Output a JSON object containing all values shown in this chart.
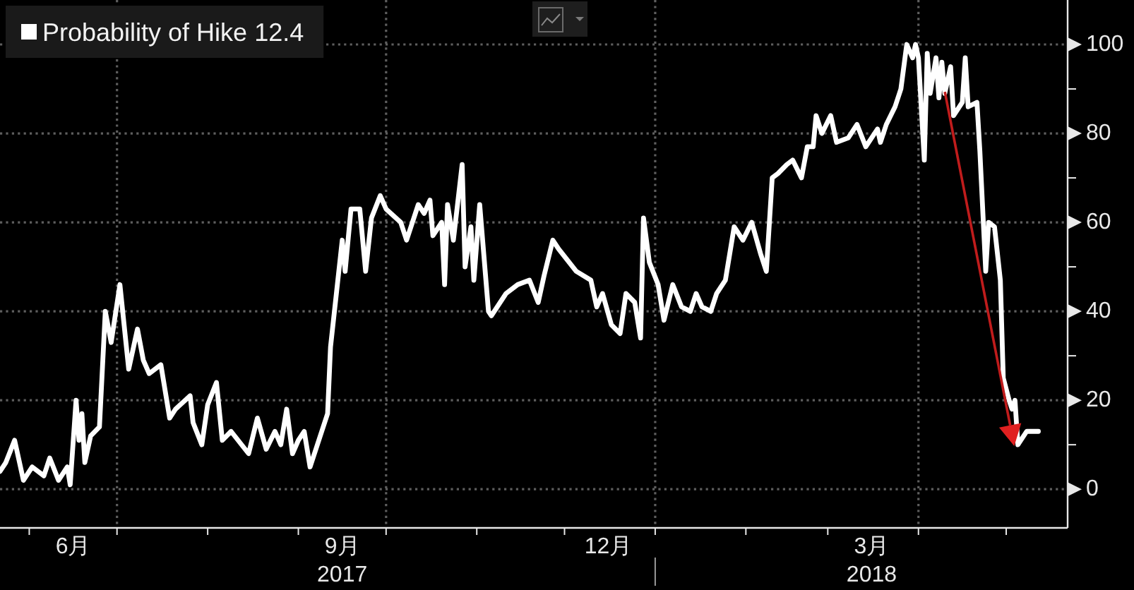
{
  "chart_data": {
    "type": "line",
    "x": [
      "2017-05-22",
      "2017-05-24",
      "2017-05-27",
      "2017-05-30",
      "2017-06-02",
      "2017-06-06",
      "2017-06-08",
      "2017-06-11",
      "2017-06-14",
      "2017-06-15",
      "2017-06-17",
      "2017-06-18",
      "2017-06-19",
      "2017-06-20",
      "2017-06-22",
      "2017-06-25",
      "2017-06-27",
      "2017-06-29",
      "2017-07-02",
      "2017-07-05",
      "2017-07-08",
      "2017-07-10",
      "2017-07-12",
      "2017-07-16",
      "2017-07-19",
      "2017-07-21",
      "2017-07-26",
      "2017-07-27",
      "2017-07-30",
      "2017-08-01",
      "2017-08-04",
      "2017-08-06",
      "2017-08-09",
      "2017-08-15",
      "2017-08-18",
      "2017-08-21",
      "2017-08-24",
      "2017-08-26",
      "2017-08-28",
      "2017-08-30",
      "2017-09-01",
      "2017-09-03",
      "2017-09-05",
      "2017-09-07",
      "2017-09-11",
      "2017-09-12",
      "2017-09-16",
      "2017-09-17",
      "2017-09-19",
      "2017-09-22",
      "2017-09-24",
      "2017-09-26",
      "2017-09-29",
      "2017-10-01",
      "2017-10-06",
      "2017-10-08",
      "2017-10-12",
      "2017-10-14",
      "2017-10-16",
      "2017-10-17",
      "2017-10-20",
      "2017-10-21",
      "2017-10-22",
      "2017-10-24",
      "2017-10-27",
      "2017-10-28",
      "2017-10-30",
      "2017-10-31",
      "2017-11-02",
      "2017-11-05",
      "2017-11-06",
      "2017-11-11",
      "2017-11-15",
      "2017-11-19",
      "2017-11-22",
      "2017-11-24",
      "2017-11-27",
      "2017-11-29",
      "2017-12-05",
      "2017-12-10",
      "2017-12-12",
      "2017-12-14",
      "2017-12-17",
      "2017-12-20",
      "2017-12-22",
      "2017-12-25",
      "2017-12-27",
      "2017-12-28",
      "2017-12-30",
      "2018-01-02",
      "2018-01-04",
      "2018-01-07",
      "2018-01-10",
      "2018-01-13",
      "2018-01-15",
      "2018-01-17",
      "2018-01-20",
      "2018-01-22",
      "2018-01-25",
      "2018-01-28",
      "2018-01-31",
      "2018-02-03",
      "2018-02-06",
      "2018-02-08",
      "2018-02-10",
      "2018-02-12",
      "2018-02-15",
      "2018-02-17",
      "2018-02-20",
      "2018-02-22",
      "2018-02-24",
      "2018-02-25",
      "2018-02-27",
      "2018-03-02",
      "2018-03-04",
      "2018-03-08",
      "2018-03-11",
      "2018-03-14",
      "2018-03-18",
      "2018-03-19",
      "2018-03-21",
      "2018-03-24",
      "2018-03-26",
      "2018-03-28",
      "2018-03-30",
      "2018-03-31",
      "2018-04-01",
      "2018-04-03",
      "2018-04-04",
      "2018-04-05",
      "2018-04-07",
      "2018-04-08",
      "2018-04-09",
      "2018-04-10",
      "2018-04-12",
      "2018-04-13",
      "2018-04-16",
      "2018-04-17",
      "2018-04-18",
      "2018-04-21",
      "2018-04-22",
      "2018-04-24",
      "2018-04-25",
      "2018-04-27",
      "2018-04-29",
      "2018-04-30",
      "2018-05-02",
      "2018-05-03",
      "2018-05-04",
      "2018-05-05",
      "2018-05-08",
      "2018-05-12"
    ],
    "series": [
      {
        "name": "Probability of Hike 12.4",
        "color": "#ffffff",
        "values": [
          4,
          6,
          11,
          2,
          5,
          3,
          7,
          2,
          5,
          1,
          20,
          11,
          17,
          6,
          12,
          14,
          40,
          33,
          46,
          27,
          36,
          29,
          26,
          28,
          16,
          18,
          21,
          15,
          10,
          19,
          24,
          11,
          13,
          8,
          16,
          9,
          13,
          10,
          18,
          8,
          11,
          13,
          5,
          9,
          17,
          32,
          56,
          49,
          63,
          63,
          49,
          61,
          66,
          63,
          60,
          56,
          64,
          62,
          65,
          57,
          60,
          46,
          64,
          56,
          73,
          50,
          59,
          47,
          64,
          40,
          39,
          44,
          46,
          47,
          42,
          48,
          56,
          54,
          49,
          47,
          41,
          44,
          37,
          35,
          44,
          42,
          34,
          61,
          51,
          46,
          38,
          46,
          41,
          40,
          44,
          41,
          40,
          44,
          47,
          59,
          56,
          60,
          53,
          49,
          70,
          71,
          73,
          74,
          70,
          77,
          77,
          84,
          80,
          84,
          78,
          79,
          82,
          77,
          81,
          78,
          82,
          86,
          90,
          100,
          97,
          100,
          97,
          74,
          98,
          89,
          97,
          88,
          96,
          89,
          95,
          84,
          87,
          97,
          86,
          87,
          76,
          49,
          60,
          59,
          47,
          25,
          20,
          18,
          20,
          10,
          13,
          13
        ]
      }
    ],
    "xlim": [
      "2017-05-22",
      "2018-05-22"
    ],
    "xticks": [
      {
        "value": "2017-06-01",
        "label": null
      },
      {
        "value": "2017-06-16",
        "label": "6月"
      },
      {
        "value": "2017-07-01",
        "label": null
      },
      {
        "value": "2017-08-01",
        "label": null
      },
      {
        "value": "2017-09-01",
        "label": null
      },
      {
        "value": "2017-09-16",
        "label": "9月\n2017"
      },
      {
        "value": "2017-10-01",
        "label": null
      },
      {
        "value": "2017-11-01",
        "label": null
      },
      {
        "value": "2017-12-01",
        "label": null
      },
      {
        "value": "2017-12-16",
        "label": "12月"
      },
      {
        "value": "2018-01-01",
        "label": null
      },
      {
        "value": "2018-02-01",
        "label": null
      },
      {
        "value": "2018-03-01",
        "label": null
      },
      {
        "value": "2018-03-16",
        "label": "3月\n2018"
      },
      {
        "value": "2018-04-01",
        "label": null
      },
      {
        "value": "2018-05-01",
        "label": null
      }
    ],
    "ylim": [
      -8.7,
      110
    ],
    "yticks": [
      0,
      {
        "value": 10,
        "label": null
      },
      20,
      {
        "value": 30,
        "label": null
      },
      40,
      {
        "value": 50,
        "label": null
      },
      60,
      {
        "value": 70,
        "label": null
      },
      80,
      {
        "value": 90,
        "label": null
      },
      100
    ],
    "grid": true,
    "legend": "top left"
  }
}
